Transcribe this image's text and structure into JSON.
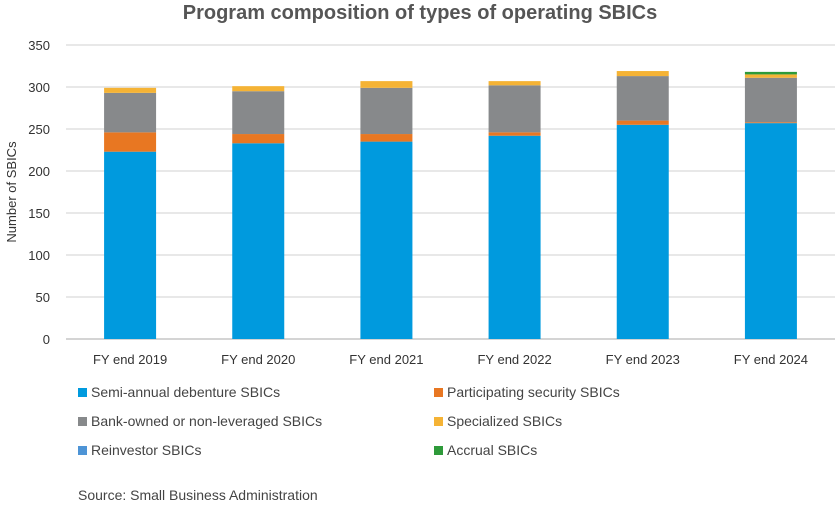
{
  "chart_data": {
    "type": "bar",
    "stacked": true,
    "title": "Program composition of types of operating  SBICs",
    "xlabel": "",
    "ylabel": "Number of SBICs",
    "ylim": [
      0,
      350
    ],
    "yticks": [
      0,
      50,
      100,
      150,
      200,
      250,
      300,
      350
    ],
    "grid": true,
    "legend_position": "bottom",
    "categories": [
      "FY end 2019",
      "FY end 2020",
      "FY end 2021",
      "FY end 2022",
      "FY end 2023",
      "FY end 2024"
    ],
    "series": [
      {
        "name": "Semi-annual debenture SBICs",
        "color": "#009ADE",
        "values": [
          223,
          233,
          235,
          242,
          255,
          257
        ]
      },
      {
        "name": "Participating security SBICs",
        "color": "#E87722",
        "values": [
          23,
          11,
          9,
          4,
          5,
          1
        ]
      },
      {
        "name": "Bank-owned or non-leveraged SBICs",
        "color": "#87898B",
        "values": [
          47,
          51,
          55,
          56,
          53,
          53
        ]
      },
      {
        "name": "Specialized SBICs",
        "color": "#F5B335",
        "values": [
          6,
          6,
          8,
          5,
          6,
          4
        ]
      },
      {
        "name": "Reinvestor SBICs",
        "color": "#4D94D6",
        "values": [
          0,
          0,
          0,
          0,
          0,
          0
        ]
      },
      {
        "name": "Accrual SBICs",
        "color": "#2E9A3A",
        "values": [
          0,
          0,
          0,
          0,
          0,
          3
        ]
      }
    ],
    "source": "Source: Small Business Administration"
  }
}
